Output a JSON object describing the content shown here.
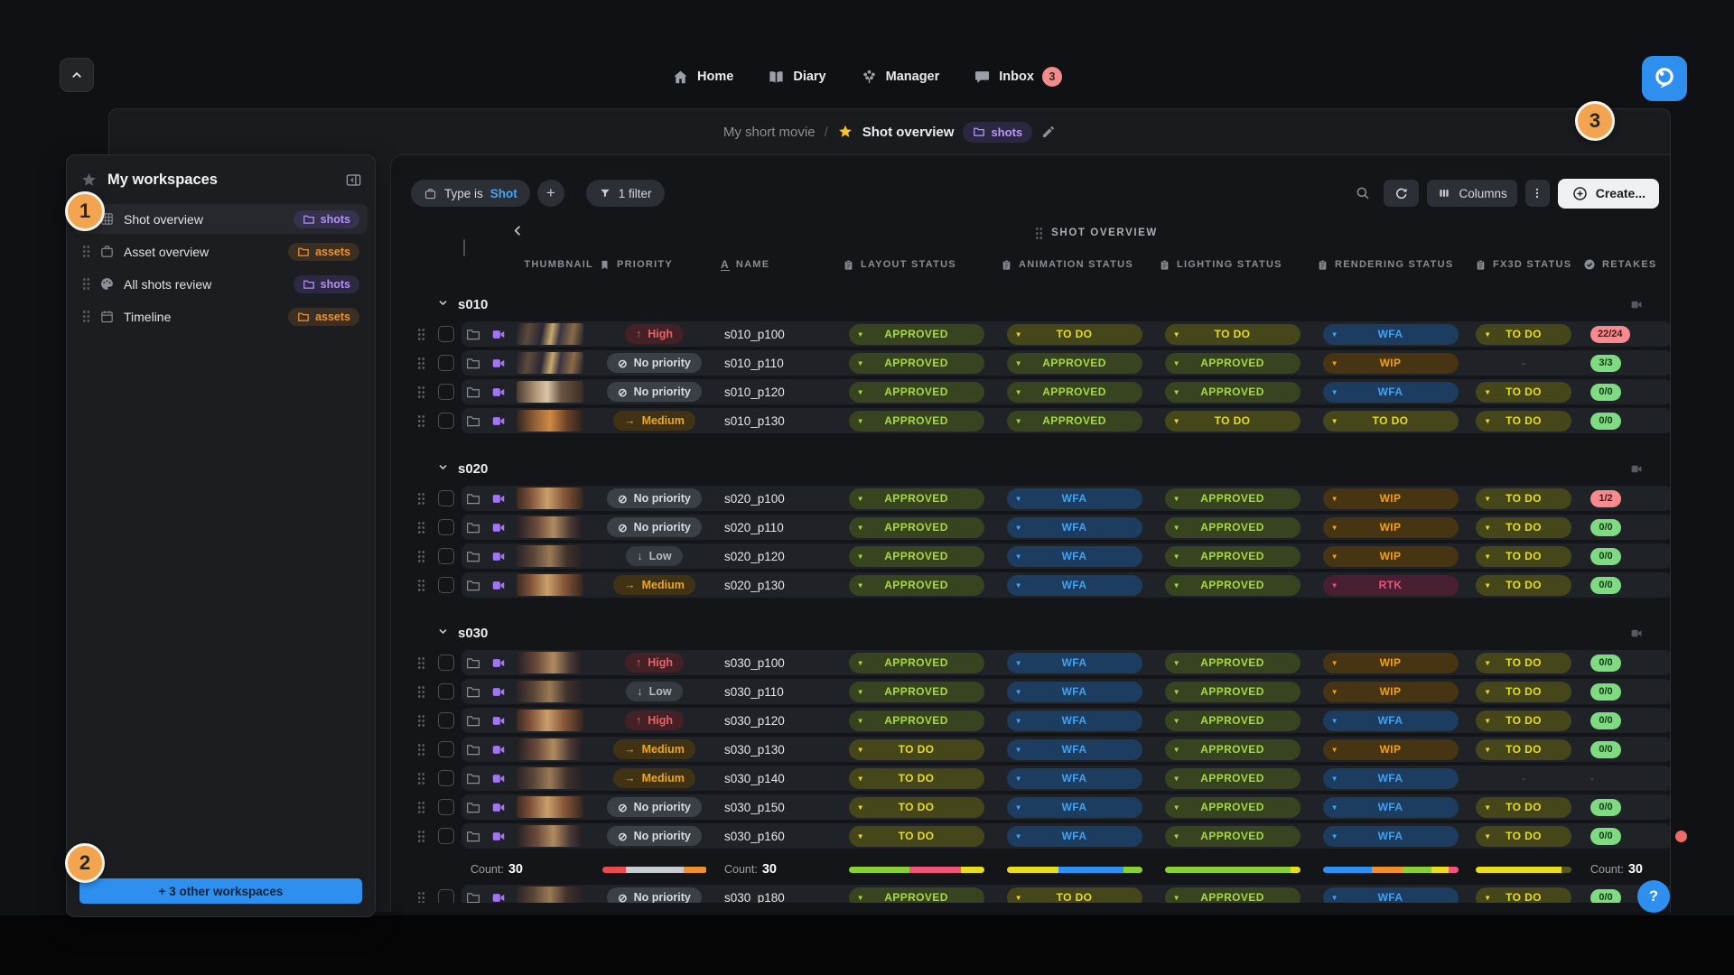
{
  "app": {
    "accent_blue": "#2f8fef",
    "callout_orange": "#f3a44f"
  },
  "top_bar": {
    "nav": [
      {
        "label": "Home",
        "icon": "home"
      },
      {
        "label": "Diary",
        "icon": "diary"
      },
      {
        "label": "Manager",
        "icon": "manager"
      },
      {
        "label": "Inbox",
        "icon": "inbox",
        "badge": "3"
      }
    ]
  },
  "breadcrumb": {
    "project": "My short movie",
    "separator": "/",
    "current": "Shot overview",
    "current_badge": "shots"
  },
  "sidebar": {
    "title": "My workspaces",
    "items": [
      {
        "label": "Shot overview",
        "icon": "film",
        "badge": "shots",
        "badge_color": "purple",
        "selected": true
      },
      {
        "label": "Asset overview",
        "icon": "box",
        "badge": "assets",
        "badge_color": "orange",
        "selected": false
      },
      {
        "label": "All shots review",
        "icon": "palette",
        "badge": "shots",
        "badge_color": "purple",
        "selected": false
      },
      {
        "label": "Timeline",
        "icon": "calendar",
        "badge": "assets",
        "badge_color": "orange",
        "selected": false
      }
    ],
    "more_button_label": "+  3 other workspaces"
  },
  "toolbar": {
    "type_chip_prefix": "Type is",
    "type_chip_value": "Shot",
    "add_button": "+",
    "filter_chip": "1 filter",
    "columns_button": "Columns",
    "create_button": "Create..."
  },
  "table": {
    "band_title": "SHOT OVERVIEW",
    "columns": [
      {
        "key": "thumbnail",
        "label": "THUMBNAIL",
        "icon": "image"
      },
      {
        "key": "priority",
        "label": "PRIORITY",
        "icon": "bookmark"
      },
      {
        "key": "name",
        "label": "NAME",
        "icon": "text"
      },
      {
        "key": "layout",
        "label": "LAYOUT STATUS",
        "icon": "clipboard"
      },
      {
        "key": "animation",
        "label": "ANIMATION STATUS",
        "icon": "clipboard"
      },
      {
        "key": "lighting",
        "label": "LIGHTING STATUS",
        "icon": "clipboard"
      },
      {
        "key": "rendering",
        "label": "RENDERING STATUS",
        "icon": "clipboard"
      },
      {
        "key": "fx3d",
        "label": "FX3D STATUS",
        "icon": "clipboard"
      },
      {
        "key": "retakes",
        "label": "RETAKES",
        "icon": "check"
      }
    ],
    "status_labels": {
      "approved": "APPROVED",
      "todo": "TO DO",
      "wfa": "WFA",
      "wip": "WIP",
      "rtk": "RTK"
    },
    "groups": [
      {
        "name": "s010",
        "rows": [
          {
            "name": "s010_p100",
            "priority": "High",
            "priority_level": "high",
            "statuses": [
              "approved",
              "todo",
              "todo",
              "wfa",
              "todo"
            ],
            "retakes": "22/24",
            "retakes_state": "red",
            "thumb": 1
          },
          {
            "name": "s010_p110",
            "priority": "No priority",
            "priority_level": "none",
            "statuses": [
              "approved",
              "approved",
              "approved",
              "wip",
              ""
            ],
            "retakes": "3/3",
            "retakes_state": "green",
            "thumb": 1
          },
          {
            "name": "s010_p120",
            "priority": "No priority",
            "priority_level": "none",
            "statuses": [
              "approved",
              "approved",
              "approved",
              "wfa",
              "todo"
            ],
            "retakes": "0/0",
            "retakes_state": "green",
            "thumb": 2
          },
          {
            "name": "s010_p130",
            "priority": "Medium",
            "priority_level": "medium",
            "statuses": [
              "approved",
              "approved",
              "todo",
              "todo",
              "todo"
            ],
            "retakes": "0/0",
            "retakes_state": "green",
            "thumb": 3
          }
        ]
      },
      {
        "name": "s020",
        "rows": [
          {
            "name": "s020_p100",
            "priority": "No priority",
            "priority_level": "none",
            "statuses": [
              "approved",
              "wfa",
              "approved",
              "wip",
              "todo"
            ],
            "retakes": "1/2",
            "retakes_state": "red",
            "thumb": 4
          },
          {
            "name": "s020_p110",
            "priority": "No priority",
            "priority_level": "none",
            "statuses": [
              "approved",
              "wfa",
              "approved",
              "wip",
              "todo"
            ],
            "retakes": "0/0",
            "retakes_state": "green",
            "thumb": 5
          },
          {
            "name": "s020_p120",
            "priority": "Low",
            "priority_level": "low",
            "statuses": [
              "approved",
              "wfa",
              "approved",
              "wip",
              "todo"
            ],
            "retakes": "0/0",
            "retakes_state": "green",
            "thumb": 6
          },
          {
            "name": "s020_p130",
            "priority": "Medium",
            "priority_level": "medium",
            "statuses": [
              "approved",
              "wfa",
              "approved",
              "rtk",
              "todo"
            ],
            "retakes": "0/0",
            "retakes_state": "green",
            "thumb": 4
          }
        ]
      },
      {
        "name": "s030",
        "rows": [
          {
            "name": "s030_p100",
            "priority": "High",
            "priority_level": "high",
            "statuses": [
              "approved",
              "wfa",
              "approved",
              "wip",
              "todo"
            ],
            "retakes": "0/0",
            "retakes_state": "green",
            "thumb": 5
          },
          {
            "name": "s030_p110",
            "priority": "Low",
            "priority_level": "low",
            "statuses": [
              "approved",
              "wfa",
              "approved",
              "wip",
              "todo"
            ],
            "retakes": "0/0",
            "retakes_state": "green",
            "thumb": 6
          },
          {
            "name": "s030_p120",
            "priority": "High",
            "priority_level": "high",
            "statuses": [
              "approved",
              "wfa",
              "approved",
              "wfa",
              "todo"
            ],
            "retakes": "0/0",
            "retakes_state": "green",
            "thumb": 4
          },
          {
            "name": "s030_p130",
            "priority": "Medium",
            "priority_level": "medium",
            "statuses": [
              "todo",
              "wfa",
              "approved",
              "wip",
              "todo"
            ],
            "retakes": "0/0",
            "retakes_state": "green",
            "thumb": 5
          },
          {
            "name": "s030_p140",
            "priority": "Medium",
            "priority_level": "medium",
            "statuses": [
              "todo",
              "wfa",
              "approved",
              "wfa",
              ""
            ],
            "retakes": "",
            "retakes_state": "none",
            "thumb": 6
          },
          {
            "name": "s030_p150",
            "priority": "No priority",
            "priority_level": "none",
            "statuses": [
              "todo",
              "wfa",
              "approved",
              "wfa",
              "todo"
            ],
            "retakes": "0/0",
            "retakes_state": "green",
            "thumb": 4
          },
          {
            "name": "s030_p160",
            "priority": "No priority",
            "priority_level": "none",
            "statuses": [
              "todo",
              "wfa",
              "approved",
              "wfa",
              "todo"
            ],
            "retakes": "0/0",
            "retakes_state": "green",
            "thumb": 5
          }
        ]
      }
    ],
    "partial_row": {
      "name": "s030_p180",
      "priority": "No priority",
      "priority_level": "none",
      "statuses": [
        "approved",
        "todo",
        "approved",
        "wfa",
        "todo"
      ],
      "retakes": "0/0",
      "retakes_state": "green",
      "thumb": 6
    },
    "summary": {
      "count_label": "Count:",
      "count_value": "30",
      "bars": {
        "priority": [
          [
            "#e84c4c",
            23
          ],
          [
            "#c6ccd2",
            55
          ],
          [
            "#ef8f2e",
            22
          ]
        ],
        "layout": [
          [
            "#8ccf35",
            45
          ],
          [
            "#f0557a",
            38
          ],
          [
            "#e8dc1f",
            17
          ]
        ],
        "animation": [
          [
            "#e8dc1f",
            38
          ],
          [
            "#2e90f0",
            48
          ],
          [
            "#8ccf35",
            14
          ]
        ],
        "lighting": [
          [
            "#8ccf35",
            93
          ],
          [
            "#e8dc1f",
            7
          ]
        ],
        "rendering": [
          [
            "#2e90f0",
            36
          ],
          [
            "#ef8f2e",
            23
          ],
          [
            "#8ccf35",
            21
          ],
          [
            "#e8dc1f",
            13
          ],
          [
            "#f0557a",
            7
          ]
        ],
        "fx3d": [
          [
            "#e8dc1f",
            90
          ],
          [
            "#55571f",
            10
          ]
        ]
      }
    }
  },
  "colors": {
    "status": {
      "approved": {
        "bg": "#38431f",
        "text": "#a6d943"
      },
      "todo": {
        "bg": "#46461b",
        "text": "#e5dc26"
      },
      "wfa": {
        "bg": "#1c3d5f",
        "text": "#43a1f1"
      },
      "wip": {
        "bg": "#463413",
        "text": "#f0a01e"
      },
      "rtk": {
        "bg": "#481f31",
        "text": "#f05378"
      }
    },
    "priority": {
      "high": {
        "bg": "#432127",
        "text": "#f25f63"
      },
      "medium": {
        "bg": "#413213",
        "text": "#eca61f"
      },
      "low": {
        "bg": "#363b41",
        "text": "#b4bac0"
      },
      "none": {
        "bg": "#3b4046",
        "text": "#d7dce1"
      }
    },
    "retakes": {
      "red": {
        "bg": "#f68a8d",
        "text": "#4b1417"
      },
      "green": {
        "bg": "#7fdb81",
        "text": "#113915"
      }
    }
  },
  "callouts": [
    "1",
    "2",
    "3"
  ],
  "help_button": "?"
}
